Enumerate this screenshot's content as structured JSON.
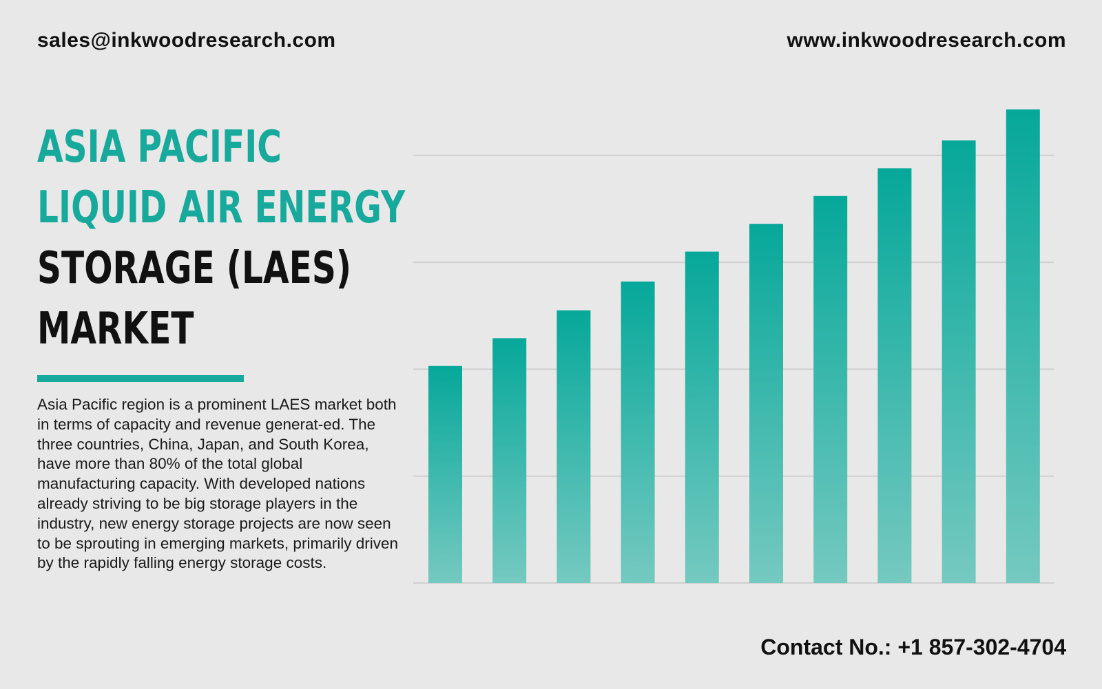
{
  "header": {
    "email": "sales@inkwoodresearch.com",
    "website": "www.inkwoodresearch.com"
  },
  "title": {
    "line1": "ASIA PACIFIC",
    "line2": "LIQUID AIR ENERGY",
    "line3": "STORAGE (LAES)",
    "line4": "MARKET"
  },
  "description": "Asia Pacific region is a prominent LAES market both in terms of capacity and revenue generat-ed. The three countries, China, Japan, and South Korea, have more than 80% of the total global manufacturing capacity. With developed nations already striving to be big storage players in the industry, new energy storage projects are now seen to be sprouting in emerging markets, primarily driven by the rapidly falling energy storage costs.",
  "footer": {
    "contact": "Contact No.: +1 857-302-4704"
  },
  "colors": {
    "accent": "#17a99b",
    "bar_top": "#06a89a",
    "bar_bottom": "#75c9c0",
    "gridline": "#cfcfcf",
    "background": "#e8e8e8"
  },
  "chart_data": {
    "type": "bar",
    "categories": [
      "",
      "",
      "",
      "",
      "",
      "",
      "",
      "",
      "",
      ""
    ],
    "values": [
      2.03,
      2.29,
      2.55,
      2.82,
      3.1,
      3.36,
      3.62,
      3.88,
      4.14,
      4.43
    ],
    "ylim": [
      0,
      4.43
    ],
    "gridlines": [
      1,
      2,
      3,
      4
    ],
    "grid": true,
    "legend": "none",
    "title": "",
    "xlabel": "",
    "ylabel": ""
  }
}
